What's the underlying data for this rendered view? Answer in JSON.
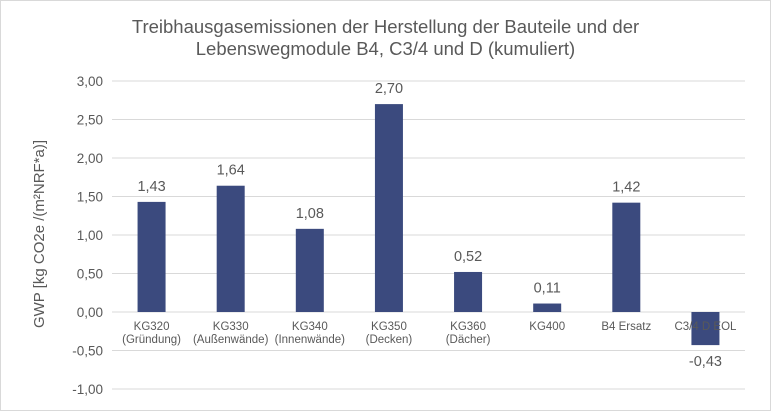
{
  "chart_data": {
    "type": "bar",
    "title_line1": "Treibhausgasemissionen der Herstellung der Bauteile und der",
    "title_line2": "Lebenswegmodule B4, C3/4 und D (kumuliert)",
    "ylabel": "GWP [kg CO2e /(m²NRF*a)]",
    "xlabel": "",
    "ylim": [
      -1.0,
      3.0
    ],
    "ytick_step": 0.5,
    "yticks": [
      "3,00",
      "2,50",
      "2,00",
      "1,50",
      "1,00",
      "0,50",
      "0,00",
      "-0,50",
      "-1,00"
    ],
    "grid": true,
    "bar_color": "#3b4a7e",
    "categories": [
      [
        "KG320",
        "(Gründung)"
      ],
      [
        "KG330",
        "(Außenwände)"
      ],
      [
        "KG340",
        "(Innenwände)"
      ],
      [
        "KG350",
        "(Decken)"
      ],
      [
        "KG360",
        "(Dächer)"
      ],
      [
        "KG400"
      ],
      [
        "B4 Ersatz"
      ],
      [
        "C3/4 D EOL"
      ]
    ],
    "values": [
      1.43,
      1.64,
      1.08,
      2.7,
      0.52,
      0.11,
      1.42,
      -0.43
    ],
    "value_labels": [
      "1,43",
      "1,64",
      "1,08",
      "2,70",
      "0,52",
      "0,11",
      "1,42",
      "-0,43"
    ]
  }
}
